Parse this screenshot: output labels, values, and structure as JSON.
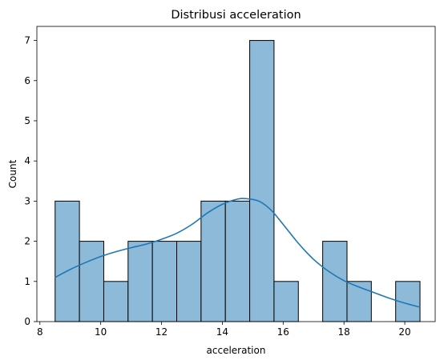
{
  "chart_data": {
    "type": "bar",
    "title": "Distribusi acceleration",
    "xlabel": "acceleration",
    "ylabel": "Count",
    "xlim": [
      7.9,
      21.0
    ],
    "ylim": [
      0,
      7.35
    ],
    "xticks": [
      8,
      10,
      12,
      14,
      16,
      18,
      20
    ],
    "yticks": [
      0,
      1,
      2,
      3,
      4,
      5,
      6,
      7
    ],
    "grid": false,
    "bin_edges": [
      8.5,
      9.3,
      10.1,
      10.9,
      11.7,
      12.5,
      13.3,
      14.1,
      14.9,
      15.7,
      16.5,
      17.3,
      18.1,
      18.9,
      19.7,
      20.5
    ],
    "counts": [
      3,
      2,
      1,
      2,
      2,
      2,
      3,
      3,
      7,
      1,
      0,
      2,
      1,
      0,
      1
    ],
    "bar_fill": "#8ebad9",
    "bar_edge": "#000000",
    "kde_color": "#1f77b4",
    "kde_curve": {
      "x": [
        8.5,
        9.0,
        9.5,
        10.0,
        10.5,
        11.0,
        11.5,
        12.0,
        12.5,
        13.0,
        13.5,
        14.0,
        14.5,
        14.8,
        15.2,
        15.6,
        16.0,
        16.5,
        17.0,
        17.5,
        18.0,
        18.5,
        19.0,
        19.5,
        20.0,
        20.5
      ],
      "y": [
        1.1,
        1.3,
        1.47,
        1.62,
        1.74,
        1.84,
        1.93,
        2.05,
        2.2,
        2.42,
        2.7,
        2.92,
        3.05,
        3.06,
        3.0,
        2.78,
        2.42,
        1.95,
        1.55,
        1.25,
        1.02,
        0.86,
        0.72,
        0.58,
        0.46,
        0.36
      ]
    }
  }
}
